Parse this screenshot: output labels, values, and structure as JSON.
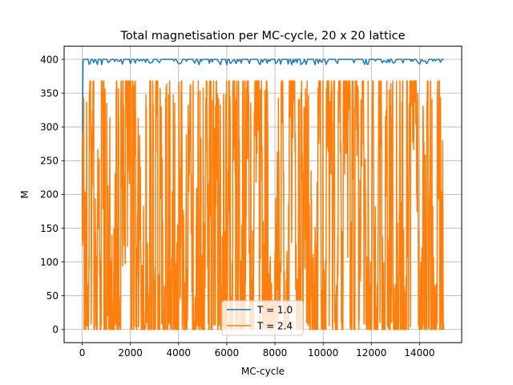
{
  "chart_data": {
    "type": "line",
    "title": "Total magnetisation per MC-cycle, 20 x 20 lattice",
    "xlabel": "MC-cycle",
    "ylabel": "M",
    "xlim": [
      -750,
      15750
    ],
    "ylim": [
      -19.5,
      419.5
    ],
    "xticks": [
      0,
      2000,
      4000,
      6000,
      8000,
      10000,
      12000,
      14000
    ],
    "yticks": [
      0,
      50,
      100,
      150,
      200,
      250,
      300,
      350,
      400
    ],
    "grid": true,
    "legend_position": "lower-center",
    "x_range": [
      0,
      15000
    ],
    "series": [
      {
        "name": "T = 1.0",
        "color": "#1f77b4",
        "start_values": [
          [
            0,
            180
          ],
          [
            10,
            265
          ],
          [
            20,
            330
          ],
          [
            35,
            395
          ],
          [
            50,
            400
          ]
        ],
        "typical_value": 400,
        "dips_to": [
          392,
          398
        ]
      },
      {
        "name": "T = 2.4",
        "color": "#ff7f0e",
        "value_range": [
          0,
          368
        ],
        "start_value": 180,
        "peak_value": 368,
        "peak_x": 800
      }
    ]
  }
}
